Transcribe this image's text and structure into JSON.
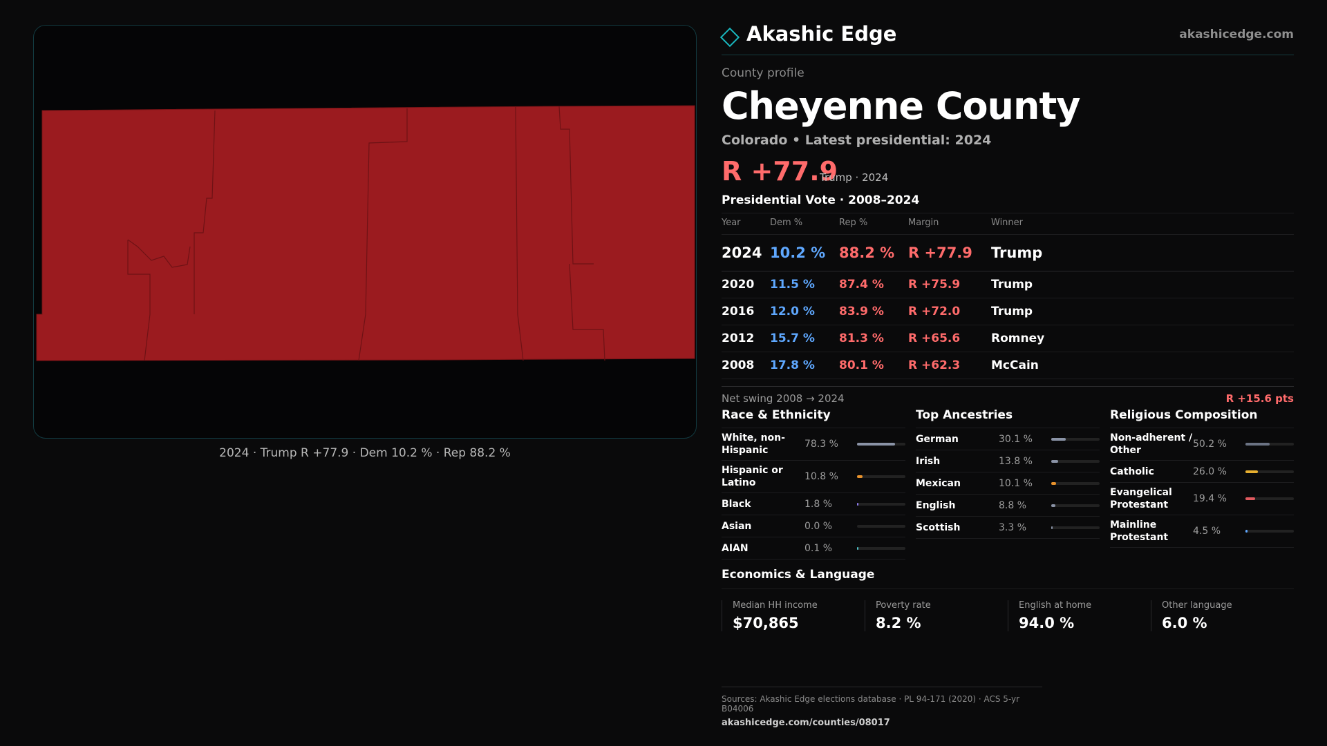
{
  "brand": {
    "name": "Akashic Edge",
    "url": "akashicedge.com"
  },
  "map_caption": "2024 · Trump R +77.9 · Dem 10.2 % · Rep 88.2 %",
  "map_fill_color": "#9b1b1f",
  "profile": {
    "kicker": "County profile",
    "county": "Cheyenne County",
    "subtitle": "Colorado • Latest presidential: 2024",
    "headline_margin": "R +77.9",
    "headline_note": "Trump · 2024"
  },
  "votes": {
    "title": "Presidential Vote · 2008–2024",
    "headers": {
      "year": "Year",
      "dem": "Dem %",
      "rep": "Rep %",
      "margin": "Margin",
      "winner": "Winner"
    },
    "rows": [
      {
        "year": "2024",
        "dem": "10.2 %",
        "rep": "88.2 %",
        "margin": "R +77.9",
        "winner": "Trump"
      },
      {
        "year": "2020",
        "dem": "11.5 %",
        "rep": "87.4 %",
        "margin": "R +75.9",
        "winner": "Trump"
      },
      {
        "year": "2016",
        "dem": "12.0 %",
        "rep": "83.9 %",
        "margin": "R +72.0",
        "winner": "Trump"
      },
      {
        "year": "2012",
        "dem": "15.7 %",
        "rep": "81.3 %",
        "margin": "R +65.6",
        "winner": "Romney"
      },
      {
        "year": "2008",
        "dem": "17.8 %",
        "rep": "80.1 %",
        "margin": "R +62.3",
        "winner": "McCain"
      }
    ]
  },
  "swing": {
    "label": "Net swing 2008 → 2024",
    "value": "R +15.6 pts"
  },
  "race": {
    "title": "Race & Ethnicity",
    "items": [
      {
        "label": "White, non-Hispanic",
        "value": "78.3 %",
        "fraction": 0.783,
        "color": "#8a93a6"
      },
      {
        "label": "Hispanic or Latino",
        "value": "10.8 %",
        "fraction": 0.108,
        "color": "#e8922c"
      },
      {
        "label": "Black",
        "value": "1.8 %",
        "fraction": 0.018,
        "color": "#8f7cf0"
      },
      {
        "label": "Asian",
        "value": "0.0 %",
        "fraction": 0.0,
        "color": "#4fc3c8"
      },
      {
        "label": "AIAN",
        "value": "0.1 %",
        "fraction": 0.001,
        "color": "#4fc3c8"
      }
    ]
  },
  "ancestry": {
    "title": "Top Ancestries",
    "items": [
      {
        "label": "German",
        "value": "30.1 %",
        "fraction": 0.301,
        "color": "#8a93a6"
      },
      {
        "label": "Irish",
        "value": "13.8 %",
        "fraction": 0.138,
        "color": "#8a93a6"
      },
      {
        "label": "Mexican",
        "value": "10.1 %",
        "fraction": 0.101,
        "color": "#e8922c"
      },
      {
        "label": "English",
        "value": "8.8 %",
        "fraction": 0.088,
        "color": "#8a93a6"
      },
      {
        "label": "Scottish",
        "value": "3.3 %",
        "fraction": 0.033,
        "color": "#8a93a6"
      }
    ]
  },
  "religion": {
    "title": "Religious Composition",
    "items": [
      {
        "label": "Non-adherent / Other",
        "value": "50.2 %",
        "fraction": 0.502,
        "color": "#6b7384"
      },
      {
        "label": "Catholic",
        "value": "26.0 %",
        "fraction": 0.26,
        "color": "#e8b030"
      },
      {
        "label": "Evangelical Protestant",
        "value": "19.4 %",
        "fraction": 0.194,
        "color": "#e05a5f"
      },
      {
        "label": "Mainline Protestant",
        "value": "4.5 %",
        "fraction": 0.045,
        "color": "#5fa8ff"
      }
    ]
  },
  "economics": {
    "title": "Economics & Language",
    "items": [
      {
        "label": "Median HH income",
        "value": "$70,865"
      },
      {
        "label": "Poverty rate",
        "value": "8.2 %"
      },
      {
        "label": "English at home",
        "value": "94.0 %"
      },
      {
        "label": "Other language",
        "value": "6.0 %"
      }
    ]
  },
  "sources": {
    "line1": "Sources: Akashic Edge elections database · PL 94-171 (2020) · ACS 5-yr B04006",
    "line2": "akashicedge.com/counties/08017"
  }
}
